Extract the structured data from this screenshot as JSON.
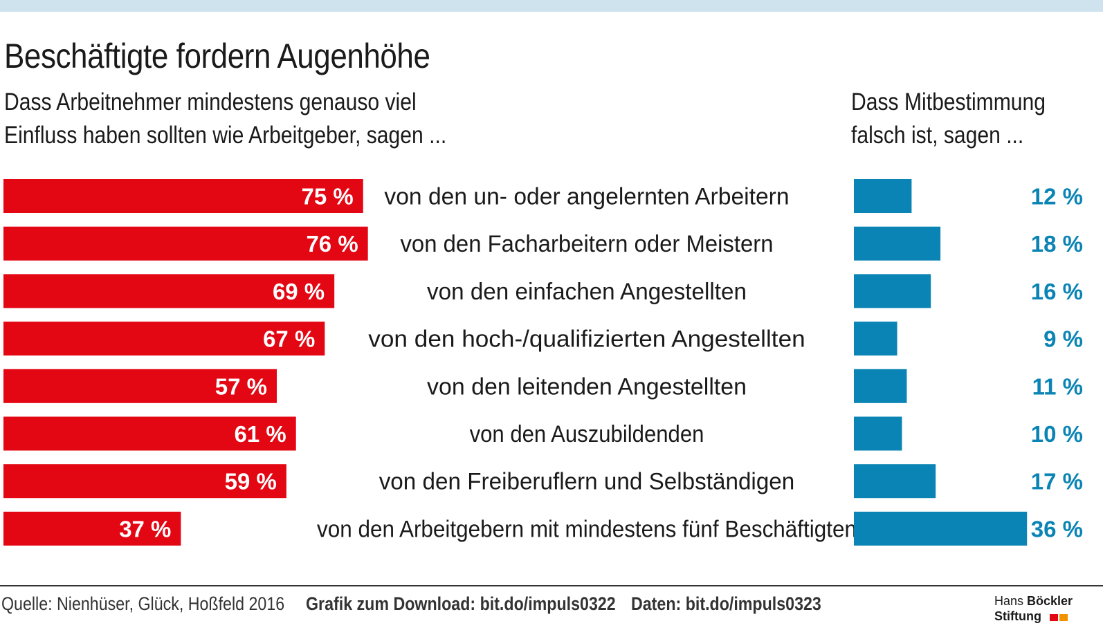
{
  "title": "Beschäftigte fordern Augenhöhe",
  "left_subtitle": [
    "Dass Arbeitnehmer mindestens genauso viel",
    "Einfluss haben sollten wie Arbeitgeber, sagen ..."
  ],
  "right_subtitle": [
    "Dass Mitbestimmung",
    "falsch ist, sagen ..."
  ],
  "chart_data": {
    "type": "bar",
    "orientation": "horizontal",
    "categories": [
      "von den un- oder angelernten Arbeitern",
      "von den Facharbeitern oder Meistern",
      "von den einfachen Angestellten",
      "von den hoch-/qualifizierten Angestellten",
      "von den leitenden Angestellten",
      "von den Auszubildenden",
      "von den Freiberuflern und Selbständigen",
      "von den Arbeitgebern mit mindestens fünf Beschäftigten"
    ],
    "series": [
      {
        "name": "Dass Arbeitnehmer mindestens genauso viel Einfluss haben sollten wie Arbeitgeber, sagen ...",
        "values": [
          75,
          76,
          69,
          67,
          57,
          61,
          59,
          37
        ],
        "labels": [
          "75 %",
          "76 %",
          "69 %",
          "67 %",
          "57 %",
          "61 %",
          "59 %",
          "37 %"
        ],
        "color": "#e30613"
      },
      {
        "name": "Dass Mitbestimmung falsch ist, sagen ...",
        "values": [
          12,
          18,
          16,
          9,
          11,
          10,
          17,
          36
        ],
        "labels": [
          "12 %",
          "18 %",
          "16 %",
          "9 %",
          "11 %",
          "10 %",
          "17 %",
          "36 %"
        ],
        "color": "#0a84b4"
      }
    ],
    "unit": "%"
  },
  "footer": {
    "source": "Quelle: Nienhüser, Glück, Hoßfeld 2016",
    "download": "Grafik zum Download: bit.do/impuls0322",
    "data": "Daten: bit.do/impuls0323"
  },
  "logo": {
    "line1_a": "Hans ",
    "line1_b": "Böckler",
    "line2": "Stiftung",
    "colors": [
      "#e30613",
      "#f39200"
    ]
  }
}
